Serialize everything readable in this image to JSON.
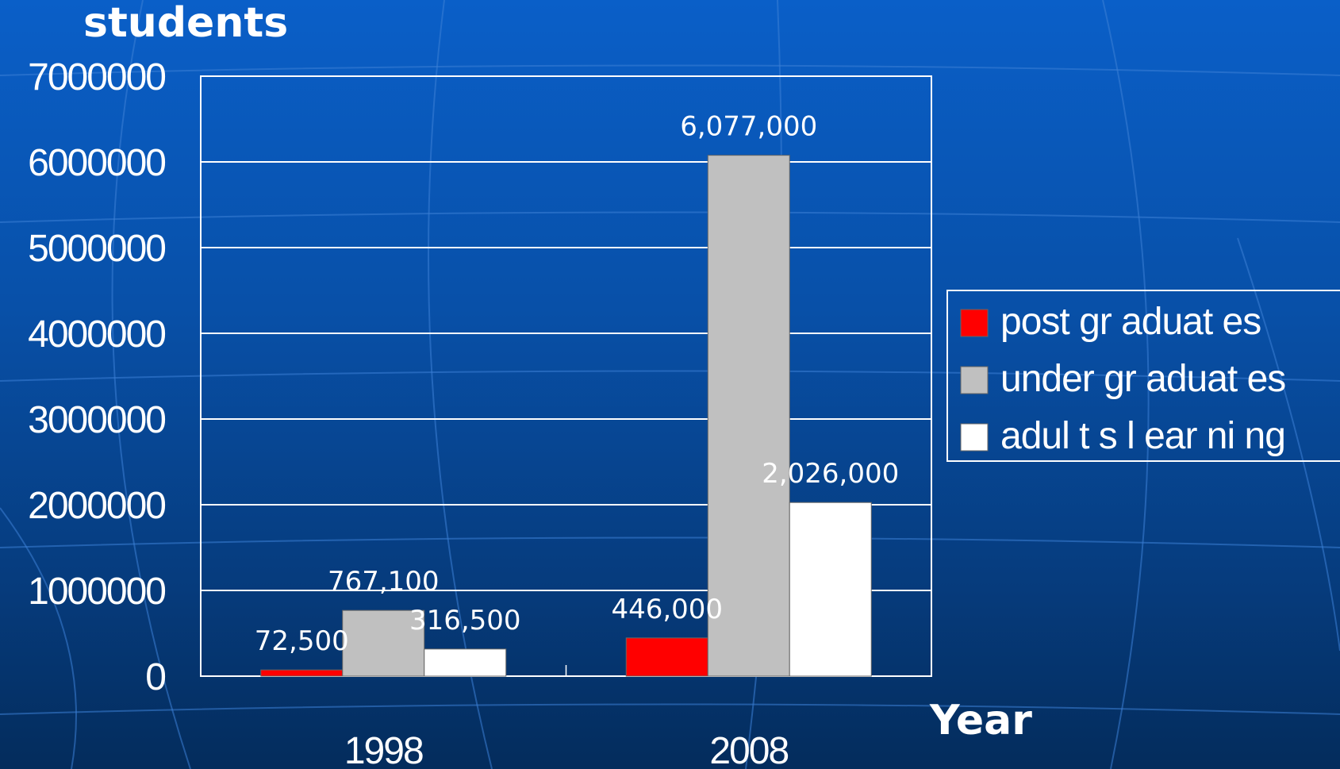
{
  "chart_data": {
    "type": "bar",
    "ylabel": "students",
    "xlabel": "Year",
    "categories": [
      "1998",
      "2008"
    ],
    "ylim": [
      0,
      7000000
    ],
    "yticks": [
      "0",
      "1000000",
      "2000000",
      "3000000",
      "4000000",
      "5000000",
      "6000000",
      "7000000"
    ],
    "grid": true,
    "legend_position": "right",
    "series": [
      {
        "name": "post gr aduat es",
        "color": "#ff0000",
        "values": [
          72500,
          446000
        ],
        "labels": [
          "72,500",
          "446,000"
        ]
      },
      {
        "name": "under gr aduat es",
        "color": "#c0c0c0",
        "values": [
          767100,
          6077000
        ],
        "labels": [
          "767,100",
          "6,077,000"
        ]
      },
      {
        "name": "adul t s  l ear ni ng",
        "color": "#ffffff",
        "values": [
          316500,
          2026000
        ],
        "labels": [
          "316,500",
          "2,026,000"
        ]
      }
    ]
  }
}
